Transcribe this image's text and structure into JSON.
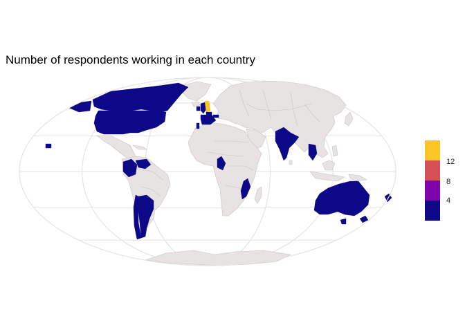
{
  "title": "Number of respondents working in each country",
  "legend": {
    "ticks": [
      "12",
      "8",
      "4"
    ],
    "bins": [
      {
        "color": "#0D0887",
        "min": 0,
        "max": 5
      },
      {
        "color": "#7E03A8",
        "min": 5,
        "max": 8
      },
      {
        "color": "#D6505A",
        "min": 8,
        "max": 11
      },
      {
        "color": "#FCC523",
        "min": 11,
        "max": 14
      }
    ]
  },
  "map": {
    "projection": "mollweide",
    "no_data_color": "#E8E3E3",
    "border_color": "#C8C3C3",
    "graticule_color": "#E4E4E4",
    "highlighted_countries": [
      {
        "name": "United States",
        "bin": 0
      },
      {
        "name": "Canada",
        "bin": 0
      },
      {
        "name": "Colombia",
        "bin": 0
      },
      {
        "name": "Venezuela",
        "bin": 0
      },
      {
        "name": "Argentina",
        "bin": 0
      },
      {
        "name": "Chile",
        "bin": 0
      },
      {
        "name": "United Kingdom",
        "bin": 0
      },
      {
        "name": "Ireland",
        "bin": 0
      },
      {
        "name": "France",
        "bin": 0
      },
      {
        "name": "Portugal",
        "bin": 0
      },
      {
        "name": "Belgium",
        "bin": 0
      },
      {
        "name": "Netherlands",
        "bin": 3
      },
      {
        "name": "Switzerland",
        "bin": 0
      },
      {
        "name": "Cameroon",
        "bin": 0
      },
      {
        "name": "Mozambique",
        "bin": 0
      },
      {
        "name": "India",
        "bin": 0
      },
      {
        "name": "Thailand",
        "bin": 0
      },
      {
        "name": "Australia",
        "bin": 0
      },
      {
        "name": "New Zealand",
        "bin": 0
      }
    ]
  }
}
